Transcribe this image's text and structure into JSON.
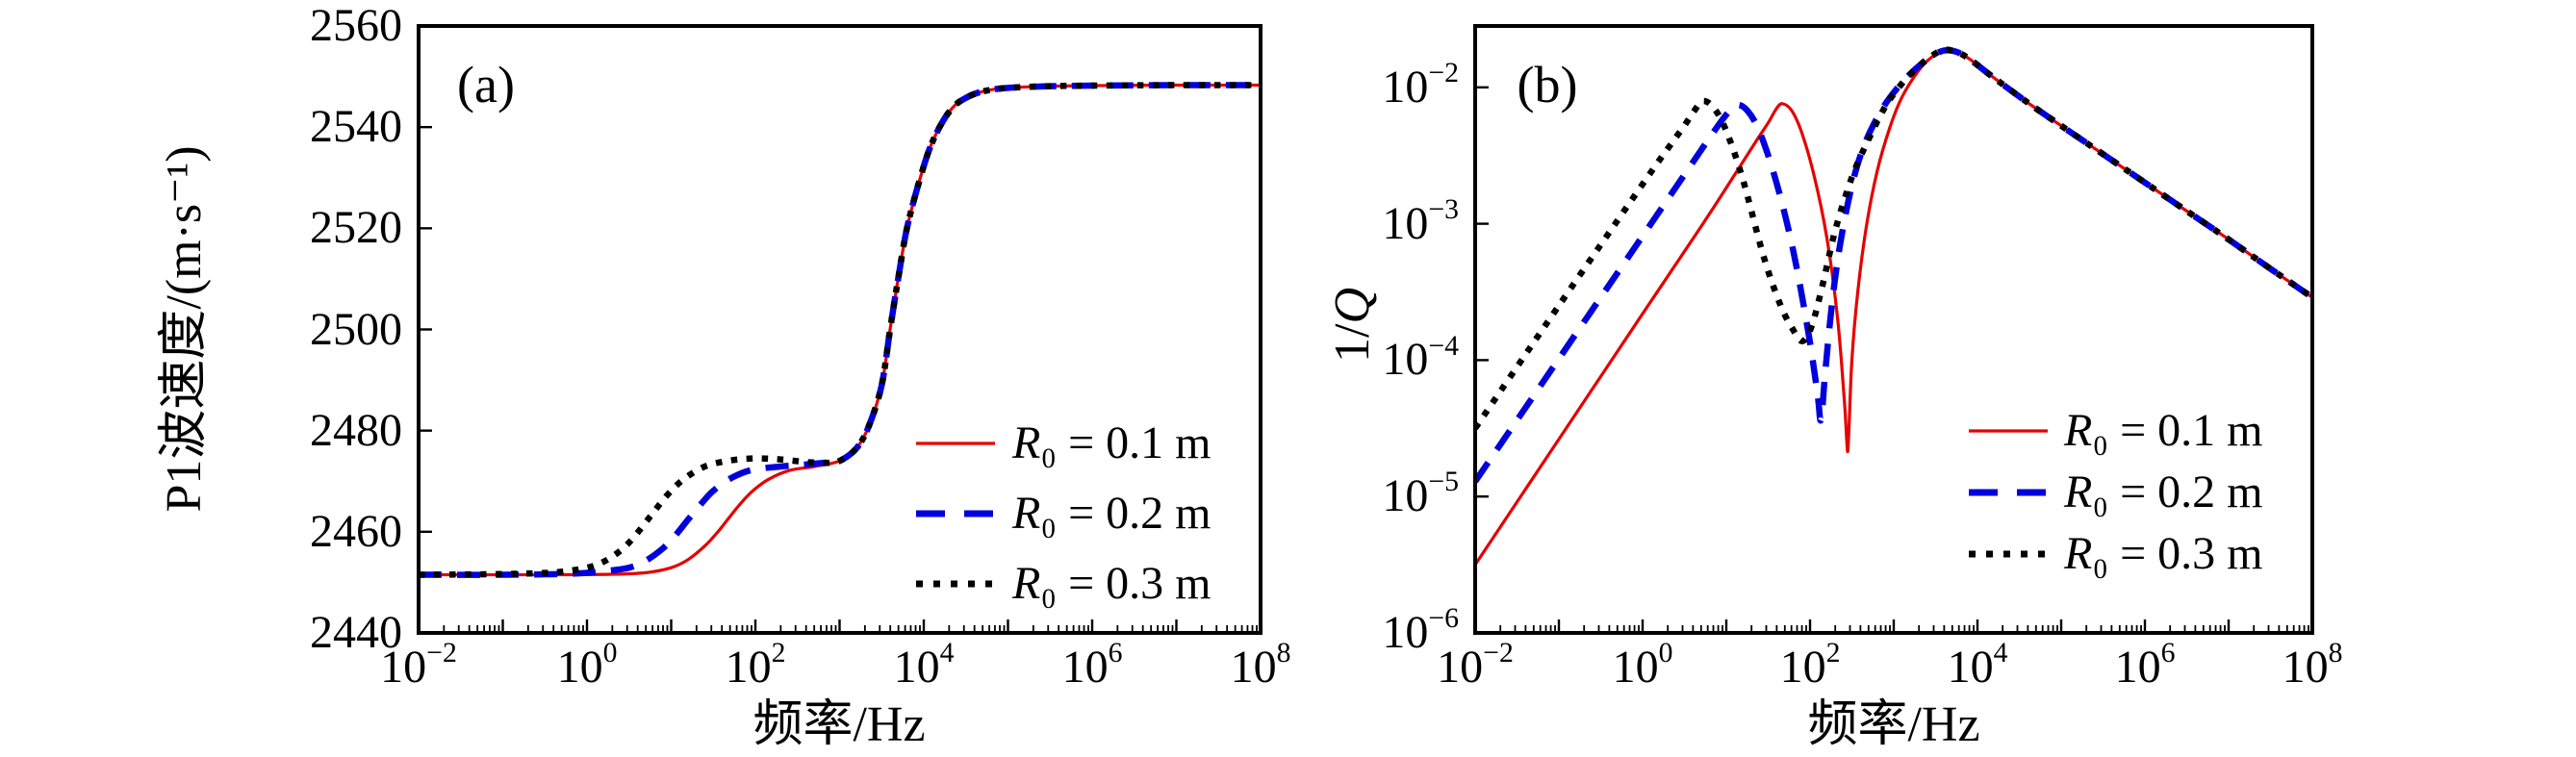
{
  "figure": {
    "background": "#ffffff",
    "text_color": "#000000",
    "frame_color": "#000000"
  },
  "chart_data": [
    {
      "type": "line",
      "panel_label": "(a)",
      "xlabel": "频率/Hz",
      "ylabel": "P1波速度/(m·s⁻¹)",
      "x_scale": "log",
      "y_scale": "linear",
      "x_range_exp": [
        -2,
        8
      ],
      "x_tick_exps": [
        -2,
        0,
        2,
        4,
        6,
        8
      ],
      "x_tick_labels": [
        "10⁻²",
        "10⁰",
        "10²",
        "10⁴",
        "10⁶",
        "10⁸"
      ],
      "ylim": [
        2440,
        2560
      ],
      "y_ticks": [
        2440,
        2460,
        2480,
        2500,
        2520,
        2540,
        2560
      ],
      "grid": false,
      "legend_position": "lower right",
      "series": [
        {
          "name": "R₀ = 0.1 m",
          "color": "#e60000",
          "line_style": "solid",
          "line_width": 3.2,
          "points": [
            [
              -2,
              2451.5
            ],
            [
              -0.5,
              2451.5
            ],
            [
              0.3,
              2451.6
            ],
            [
              0.7,
              2451.9
            ],
            [
              1.0,
              2452.9
            ],
            [
              1.2,
              2454.5
            ],
            [
              1.4,
              2457.2
            ],
            [
              1.55,
              2459.9
            ],
            [
              1.67,
              2462.4
            ],
            [
              1.8,
              2465.1
            ],
            [
              1.95,
              2467.8
            ],
            [
              2.15,
              2470.3
            ],
            [
              2.4,
              2472.1
            ],
            [
              2.7,
              2472.9
            ],
            [
              3.0,
              2474.0
            ],
            [
              3.2,
              2476.5
            ],
            [
              3.35,
              2481
            ],
            [
              3.5,
              2489
            ],
            [
              3.6,
              2500
            ],
            [
              3.7,
              2510.5
            ],
            [
              3.8,
              2520
            ],
            [
              3.95,
              2529.5
            ],
            [
              4.1,
              2537
            ],
            [
              4.3,
              2543
            ],
            [
              4.5,
              2545.8
            ],
            [
              4.8,
              2547.4
            ],
            [
              5.3,
              2548
            ],
            [
              6.0,
              2548.2
            ],
            [
              7.0,
              2548.3
            ],
            [
              8.0,
              2548.3
            ]
          ]
        },
        {
          "name": "R₀ = 0.2 m",
          "color": "#0000dd",
          "line_style": "dashed",
          "line_width": 6.5,
          "points": [
            [
              -2,
              2451.5
            ],
            [
              -1,
              2451.5
            ],
            [
              -0.2,
              2451.7
            ],
            [
              0.2,
              2452.2
            ],
            [
              0.5,
              2452.9
            ],
            [
              0.7,
              2454.3
            ],
            [
              0.9,
              2456.7
            ],
            [
              1.05,
              2459.3
            ],
            [
              1.2,
              2462.4
            ],
            [
              1.35,
              2465.4
            ],
            [
              1.5,
              2468.1
            ],
            [
              1.7,
              2470.5
            ],
            [
              1.95,
              2472.2
            ],
            [
              2.3,
              2472.9
            ],
            [
              2.6,
              2473.3
            ],
            [
              2.85,
              2473.7
            ],
            [
              3.0,
              2474.0
            ],
            [
              3.2,
              2476.5
            ],
            [
              3.35,
              2481
            ],
            [
              3.5,
              2489
            ],
            [
              3.6,
              2500
            ],
            [
              3.7,
              2510.5
            ],
            [
              3.8,
              2520
            ],
            [
              3.95,
              2529.5
            ],
            [
              4.1,
              2537
            ],
            [
              4.3,
              2543
            ],
            [
              4.5,
              2545.8
            ],
            [
              4.8,
              2547.4
            ],
            [
              5.3,
              2548
            ],
            [
              6.0,
              2548.2
            ],
            [
              7.0,
              2548.3
            ],
            [
              8.0,
              2548.3
            ]
          ]
        },
        {
          "name": "R₀ = 0.3 m",
          "color": "#000000",
          "line_style": "dotted",
          "line_width": 6.5,
          "points": [
            [
              -2,
              2451.5
            ],
            [
              -1.2,
              2451.6
            ],
            [
              -0.6,
              2451.8
            ],
            [
              -0.3,
              2452.1
            ],
            [
              0.0,
              2452.9
            ],
            [
              0.2,
              2454.1
            ],
            [
              0.4,
              2456.3
            ],
            [
              0.55,
              2458.8
            ],
            [
              0.75,
              2463.0
            ],
            [
              0.95,
              2467.2
            ],
            [
              1.15,
              2470.4
            ],
            [
              1.4,
              2472.9
            ],
            [
              1.7,
              2474.1
            ],
            [
              2.0,
              2474.5
            ],
            [
              2.3,
              2474.3
            ],
            [
              2.6,
              2473.8
            ],
            [
              2.85,
              2473.6
            ],
            [
              3.0,
              2474.0
            ],
            [
              3.2,
              2476.5
            ],
            [
              3.35,
              2481
            ],
            [
              3.5,
              2489
            ],
            [
              3.6,
              2500
            ],
            [
              3.7,
              2510.5
            ],
            [
              3.8,
              2520
            ],
            [
              3.95,
              2529.5
            ],
            [
              4.1,
              2537
            ],
            [
              4.3,
              2543
            ],
            [
              4.5,
              2545.8
            ],
            [
              4.8,
              2547.4
            ],
            [
              5.3,
              2548
            ],
            [
              6.0,
              2548.2
            ],
            [
              7.0,
              2548.3
            ],
            [
              8.0,
              2548.3
            ]
          ]
        }
      ]
    },
    {
      "type": "line",
      "panel_label": "(b)",
      "xlabel": "频率/Hz",
      "ylabel": "1/Q",
      "x_scale": "log",
      "y_scale": "log",
      "x_range_exp": [
        -2,
        8
      ],
      "x_tick_exps": [
        -2,
        0,
        2,
        4,
        6,
        8
      ],
      "x_tick_labels": [
        "10⁻²",
        "10⁰",
        "10²",
        "10⁴",
        "10⁶",
        "10⁸"
      ],
      "ylim_exp": [
        -6,
        -1.55
      ],
      "y_tick_exps": [
        -2,
        -3,
        -4,
        -5,
        -6
      ],
      "y_tick_labels": [
        "10⁻²",
        "10⁻³",
        "10⁻⁴",
        "10⁻⁵",
        "10⁻⁶"
      ],
      "grid": false,
      "legend_position": "lower right",
      "series": [
        {
          "name": "R₀ = 0.1 m",
          "color": "#e60000",
          "line_style": "solid",
          "line_width": 3.2,
          "points_log10": [
            [
              -2,
              -5.5
            ],
            [
              -1,
              -4.58
            ],
            [
              0,
              -3.66
            ],
            [
              0.7,
              -3.02
            ],
            [
              1.1,
              -2.64
            ],
            [
              1.35,
              -2.4
            ],
            [
              1.5,
              -2.26
            ],
            [
              1.6,
              -2.155
            ],
            [
              1.67,
              -2.12
            ],
            [
              1.78,
              -2.17
            ],
            [
              1.9,
              -2.33
            ],
            [
              2.05,
              -2.65
            ],
            [
              2.2,
              -3.1
            ],
            [
              2.33,
              -3.7
            ],
            [
              2.41,
              -4.3
            ],
            [
              2.435,
              -4.55
            ],
            [
              2.45,
              -4.67
            ],
            [
              2.465,
              -4.5
            ],
            [
              2.5,
              -4.0
            ],
            [
              2.57,
              -3.5
            ],
            [
              2.67,
              -3.03
            ],
            [
              2.8,
              -2.62
            ],
            [
              2.95,
              -2.3
            ],
            [
              3.1,
              -2.07
            ],
            [
              3.3,
              -1.875
            ],
            [
              3.45,
              -1.78
            ],
            [
              3.6,
              -1.735
            ],
            [
              3.75,
              -1.74
            ],
            [
              3.9,
              -1.79
            ],
            [
              4.1,
              -1.885
            ],
            [
              4.35,
              -2.0
            ],
            [
              4.7,
              -2.155
            ],
            [
              5.2,
              -2.365
            ],
            [
              5.8,
              -2.615
            ],
            [
              6.4,
              -2.865
            ],
            [
              7.0,
              -3.115
            ],
            [
              7.5,
              -3.33
            ],
            [
              8.0,
              -3.54
            ]
          ]
        },
        {
          "name": "R₀ = 0.2 m",
          "color": "#0000dd",
          "line_style": "dashed",
          "line_width": 6.5,
          "points_log10": [
            [
              -2,
              -4.89
            ],
            [
              -1,
              -3.99
            ],
            [
              0,
              -3.09
            ],
            [
              0.5,
              -2.64
            ],
            [
              0.8,
              -2.37
            ],
            [
              1.0,
              -2.2
            ],
            [
              1.12,
              -2.13
            ],
            [
              1.25,
              -2.17
            ],
            [
              1.4,
              -2.33
            ],
            [
              1.6,
              -2.7
            ],
            [
              1.8,
              -3.2
            ],
            [
              1.98,
              -3.8
            ],
            [
              2.09,
              -4.25
            ],
            [
              2.13,
              -4.44
            ],
            [
              2.18,
              -4.1
            ],
            [
              2.26,
              -3.6
            ],
            [
              2.36,
              -3.15
            ],
            [
              2.5,
              -2.72
            ],
            [
              2.65,
              -2.42
            ],
            [
              2.85,
              -2.17
            ],
            [
              3.05,
              -2.0
            ],
            [
              3.25,
              -1.87
            ],
            [
              3.45,
              -1.775
            ],
            [
              3.6,
              -1.73
            ],
            [
              3.75,
              -1.74
            ],
            [
              3.9,
              -1.79
            ],
            [
              4.1,
              -1.885
            ],
            [
              4.35,
              -2.0
            ],
            [
              4.7,
              -2.155
            ],
            [
              5.2,
              -2.365
            ],
            [
              5.8,
              -2.615
            ],
            [
              6.4,
              -2.865
            ],
            [
              7.0,
              -3.115
            ],
            [
              7.5,
              -3.33
            ],
            [
              8.0,
              -3.54
            ]
          ]
        },
        {
          "name": "R₀ = 0.3 m",
          "color": "#000000",
          "line_style": "dotted",
          "line_width": 6.5,
          "points_log10": [
            [
              -2,
              -4.5
            ],
            [
              -1,
              -3.6
            ],
            [
              0,
              -2.71
            ],
            [
              0.3,
              -2.45
            ],
            [
              0.5,
              -2.28
            ],
            [
              0.62,
              -2.17
            ],
            [
              0.72,
              -2.1
            ],
            [
              0.85,
              -2.15
            ],
            [
              1.0,
              -2.32
            ],
            [
              1.2,
              -2.68
            ],
            [
              1.45,
              -3.25
            ],
            [
              1.65,
              -3.6
            ],
            [
              1.8,
              -3.78
            ],
            [
              1.91,
              -3.86
            ],
            [
              2.02,
              -3.75
            ],
            [
              2.15,
              -3.45
            ],
            [
              2.3,
              -3.05
            ],
            [
              2.5,
              -2.66
            ],
            [
              2.7,
              -2.38
            ],
            [
              2.9,
              -2.14
            ],
            [
              3.1,
              -1.97
            ],
            [
              3.3,
              -1.845
            ],
            [
              3.45,
              -1.77
            ],
            [
              3.6,
              -1.725
            ],
            [
              3.75,
              -1.74
            ],
            [
              3.9,
              -1.79
            ],
            [
              4.1,
              -1.885
            ],
            [
              4.35,
              -2.0
            ],
            [
              4.7,
              -2.155
            ],
            [
              5.2,
              -2.365
            ],
            [
              5.8,
              -2.615
            ],
            [
              6.4,
              -2.865
            ],
            [
              7.0,
              -3.115
            ],
            [
              7.5,
              -3.33
            ],
            [
              8.0,
              -3.54
            ]
          ]
        }
      ]
    }
  ]
}
